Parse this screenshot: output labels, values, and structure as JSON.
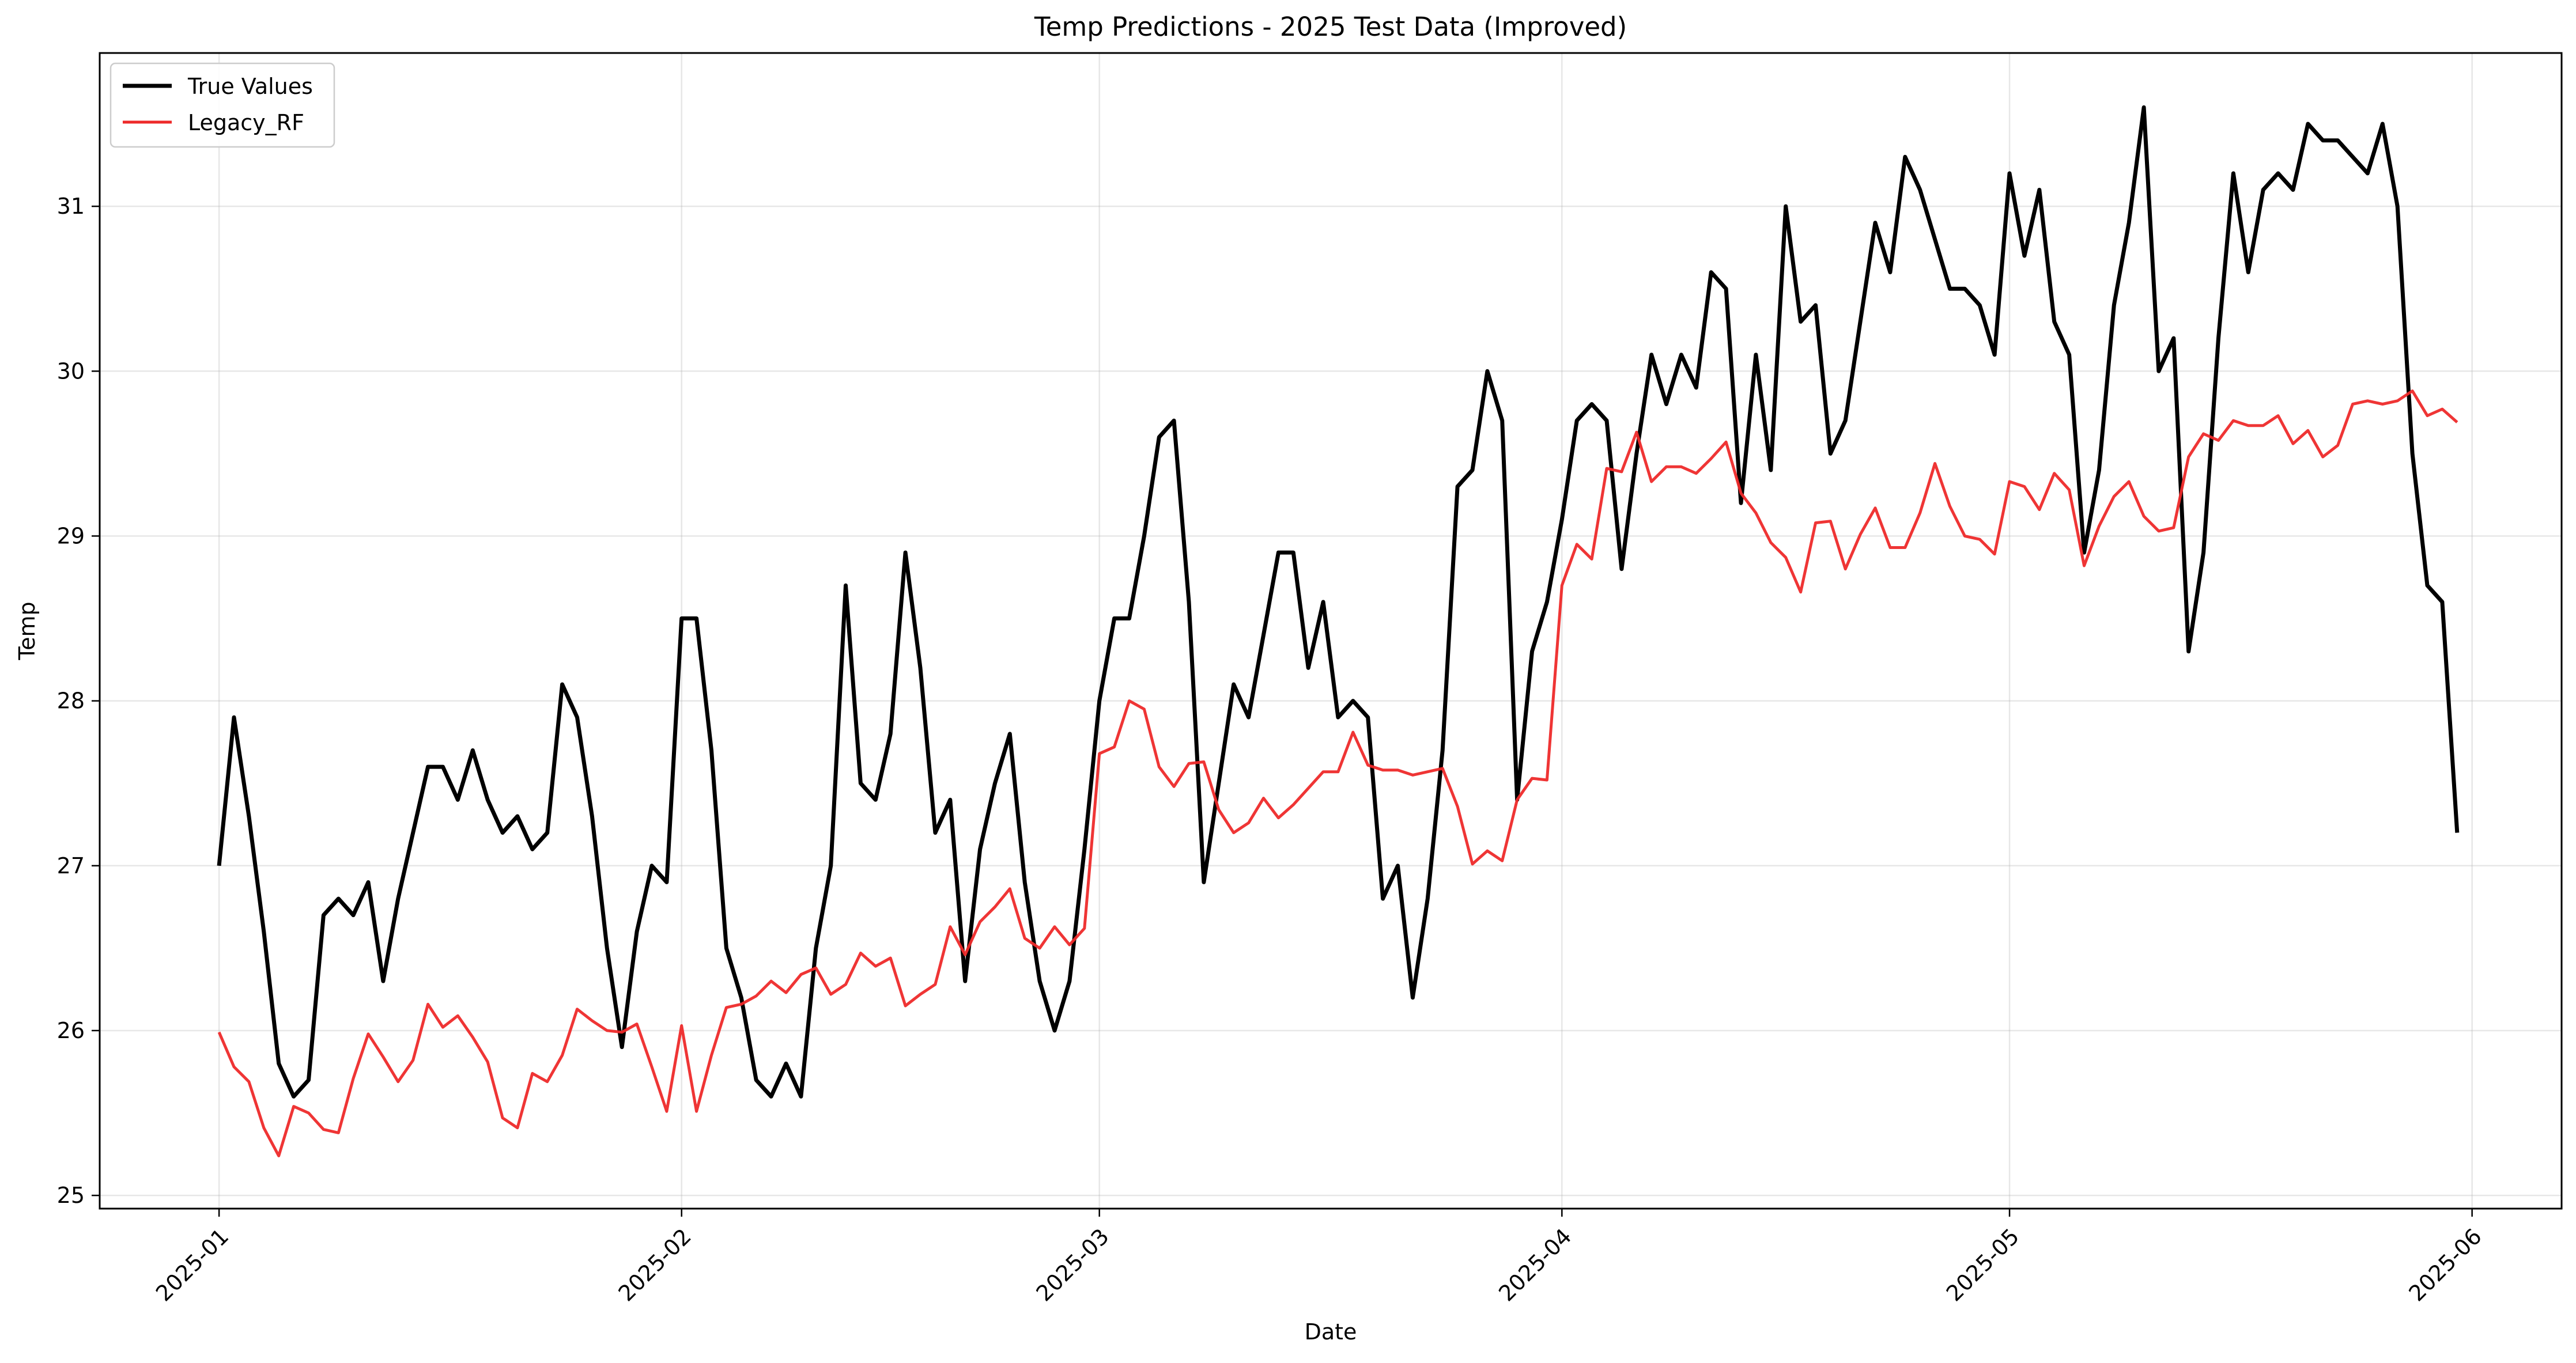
{
  "chart_data": {
    "type": "line",
    "title": "Temp Predictions - 2025 Test Data (Improved)",
    "xlabel": "Date",
    "ylabel": "Temp",
    "x_start": "2025-01-01",
    "x_ticks": [
      "2025-01",
      "2025-02",
      "2025-03",
      "2025-04",
      "2025-05",
      "2025-06"
    ],
    "xlim": [
      "2024-12-24",
      "2025-06-07"
    ],
    "ylim": [
      24.92,
      31.93
    ],
    "y_ticks": [
      25,
      26,
      27,
      28,
      29,
      30,
      31
    ],
    "grid": true,
    "legend_position": "top-left",
    "series": [
      {
        "name": "True Values",
        "color": "#000000",
        "values": [
          27.0,
          27.9,
          27.3,
          26.6,
          25.8,
          25.6,
          25.7,
          26.7,
          26.8,
          26.7,
          26.9,
          26.3,
          26.8,
          27.2,
          27.6,
          27.6,
          27.4,
          27.7,
          27.4,
          27.2,
          27.3,
          27.1,
          27.2,
          28.1,
          27.9,
          27.3,
          26.5,
          25.9,
          26.6,
          27.0,
          26.9,
          28.5,
          28.5,
          27.7,
          26.5,
          26.2,
          25.7,
          25.6,
          25.8,
          25.6,
          26.5,
          27.0,
          28.7,
          27.5,
          27.4,
          27.8,
          28.9,
          28.2,
          27.2,
          27.4,
          26.3,
          27.1,
          27.5,
          27.8,
          26.9,
          26.3,
          26.0,
          26.3,
          27.1,
          28.0,
          28.5,
          28.5,
          29.0,
          29.6,
          29.7,
          28.6,
          26.9,
          27.5,
          28.1,
          27.9,
          28.4,
          28.9,
          28.9,
          28.2,
          28.6,
          27.9,
          28.0,
          27.9,
          26.8,
          27.0,
          26.2,
          26.8,
          27.7,
          29.3,
          29.4,
          30.0,
          29.7,
          27.4,
          28.3,
          28.6,
          29.1,
          29.7,
          29.8,
          29.7,
          28.8,
          29.5,
          30.1,
          29.8,
          30.1,
          29.9,
          30.6,
          30.5,
          29.2,
          30.1,
          29.4,
          31.0,
          30.3,
          30.4,
          29.5,
          29.7,
          30.3,
          30.9,
          30.6,
          31.3,
          31.1,
          30.8,
          30.5,
          30.5,
          30.4,
          30.1,
          31.2,
          30.7,
          31.1,
          30.3,
          30.1,
          28.9,
          29.4,
          30.4,
          30.9,
          31.6,
          30.0,
          30.2,
          28.3,
          28.9,
          30.2,
          31.2,
          30.6,
          31.1,
          31.2,
          31.1,
          31.5,
          31.4,
          31.4,
          31.3,
          31.2,
          31.5,
          31.0,
          29.5,
          28.7,
          28.6,
          27.2
        ]
      },
      {
        "name": "Legacy_RF",
        "color": "#ee2a2a",
        "values": [
          25.99,
          25.78,
          25.69,
          25.41,
          25.24,
          25.54,
          25.5,
          25.4,
          25.38,
          25.71,
          25.98,
          25.84,
          25.69,
          25.82,
          26.16,
          26.02,
          26.09,
          25.96,
          25.81,
          25.47,
          25.41,
          25.74,
          25.69,
          25.85,
          26.13,
          26.06,
          26.0,
          25.99,
          26.04,
          25.78,
          25.51,
          26.03,
          25.51,
          25.85,
          26.14,
          26.16,
          26.21,
          26.3,
          26.23,
          26.34,
          26.38,
          26.22,
          26.28,
          26.47,
          26.39,
          26.44,
          26.15,
          26.22,
          26.28,
          26.63,
          26.46,
          26.66,
          26.75,
          26.86,
          26.56,
          26.5,
          26.63,
          26.52,
          26.62,
          27.68,
          27.72,
          28.0,
          27.95,
          27.6,
          27.48,
          27.62,
          27.63,
          27.34,
          27.2,
          27.26,
          27.41,
          27.29,
          27.37,
          27.47,
          27.57,
          27.57,
          27.81,
          27.61,
          27.58,
          27.58,
          27.55,
          27.57,
          27.59,
          27.36,
          27.01,
          27.09,
          27.03,
          27.4,
          27.53,
          27.52,
          28.7,
          28.95,
          28.86,
          29.41,
          29.39,
          29.63,
          29.33,
          29.42,
          29.42,
          29.38,
          29.47,
          29.57,
          29.26,
          29.14,
          28.96,
          28.87,
          28.66,
          29.08,
          29.09,
          28.8,
          29.01,
          29.17,
          28.93,
          28.93,
          29.14,
          29.44,
          29.18,
          29.0,
          28.98,
          28.89,
          29.33,
          29.3,
          29.16,
          29.38,
          29.28,
          28.82,
          29.06,
          29.24,
          29.33,
          29.12,
          29.03,
          29.05,
          29.48,
          29.62,
          29.58,
          29.7,
          29.67,
          29.67,
          29.73,
          29.56,
          29.64,
          29.48,
          29.55,
          29.8,
          29.82,
          29.8,
          29.82,
          29.88,
          29.73,
          29.77,
          29.69
        ]
      }
    ]
  }
}
